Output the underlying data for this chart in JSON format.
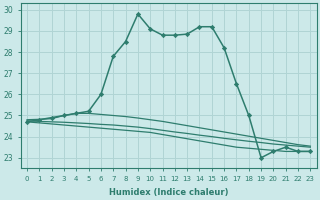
{
  "title": "",
  "xlabel": "Humidex (Indice chaleur)",
  "ylabel": "",
  "xlim": [
    -0.5,
    23.5
  ],
  "ylim": [
    22.5,
    30.3
  ],
  "bg_color": "#cce9e9",
  "grid_color": "#b0d4d4",
  "line_color": "#2e7d6e",
  "yticks": [
    23,
    24,
    25,
    26,
    27,
    28,
    29,
    30
  ],
  "xticks": [
    0,
    1,
    2,
    3,
    4,
    5,
    6,
    7,
    8,
    9,
    10,
    11,
    12,
    13,
    14,
    15,
    16,
    17,
    18,
    19,
    20,
    21,
    22,
    23
  ],
  "lines": [
    {
      "x": [
        0,
        1,
        2,
        3,
        4,
        5,
        6,
        7,
        8,
        9,
        10,
        11,
        12,
        13,
        14,
        15,
        16,
        17,
        18,
        19,
        20,
        21,
        22,
        23
      ],
      "y": [
        24.7,
        24.8,
        24.9,
        25.0,
        25.1,
        25.2,
        26.0,
        27.8,
        28.5,
        29.8,
        29.1,
        28.8,
        28.8,
        28.85,
        29.2,
        29.2,
        28.2,
        26.5,
        25.0,
        23.0,
        23.3,
        23.5,
        23.3,
        23.3
      ],
      "marker": "D",
      "markersize": 2.2,
      "linewidth": 1.1
    },
    {
      "x": [
        0,
        1,
        2,
        3,
        4,
        5,
        6,
        7,
        8,
        9,
        10,
        11,
        12,
        13,
        14,
        15,
        16,
        17,
        18,
        19,
        20,
        21,
        22,
        23
      ],
      "y": [
        24.7,
        24.65,
        24.6,
        24.55,
        24.5,
        24.45,
        24.4,
        24.35,
        24.3,
        24.25,
        24.2,
        24.1,
        24.0,
        23.9,
        23.8,
        23.7,
        23.6,
        23.5,
        23.45,
        23.4,
        23.35,
        23.3,
        23.3,
        23.3
      ],
      "marker": null,
      "linewidth": 0.9
    },
    {
      "x": [
        0,
        1,
        2,
        3,
        4,
        5,
        6,
        7,
        8,
        9,
        10,
        11,
        12,
        13,
        14,
        15,
        16,
        17,
        18,
        19,
        20,
        21,
        22,
        23
      ],
      "y": [
        24.75,
        24.72,
        24.7,
        24.68,
        24.65,
        24.62,
        24.58,
        24.55,
        24.5,
        24.45,
        24.38,
        24.3,
        24.22,
        24.15,
        24.07,
        24.0,
        23.92,
        23.85,
        23.78,
        23.72,
        23.65,
        23.6,
        23.55,
        23.5
      ],
      "marker": null,
      "linewidth": 0.9
    },
    {
      "x": [
        0,
        1,
        2,
        3,
        4,
        5,
        6,
        7,
        8,
        9,
        10,
        11,
        12,
        13,
        14,
        15,
        16,
        17,
        18,
        19,
        20,
        21,
        22,
        23
      ],
      "y": [
        24.8,
        24.82,
        24.85,
        25.0,
        25.1,
        25.1,
        25.05,
        25.0,
        24.95,
        24.88,
        24.8,
        24.72,
        24.62,
        24.52,
        24.42,
        24.32,
        24.22,
        24.12,
        24.02,
        23.92,
        23.82,
        23.72,
        23.62,
        23.55
      ],
      "marker": null,
      "linewidth": 0.9
    }
  ]
}
